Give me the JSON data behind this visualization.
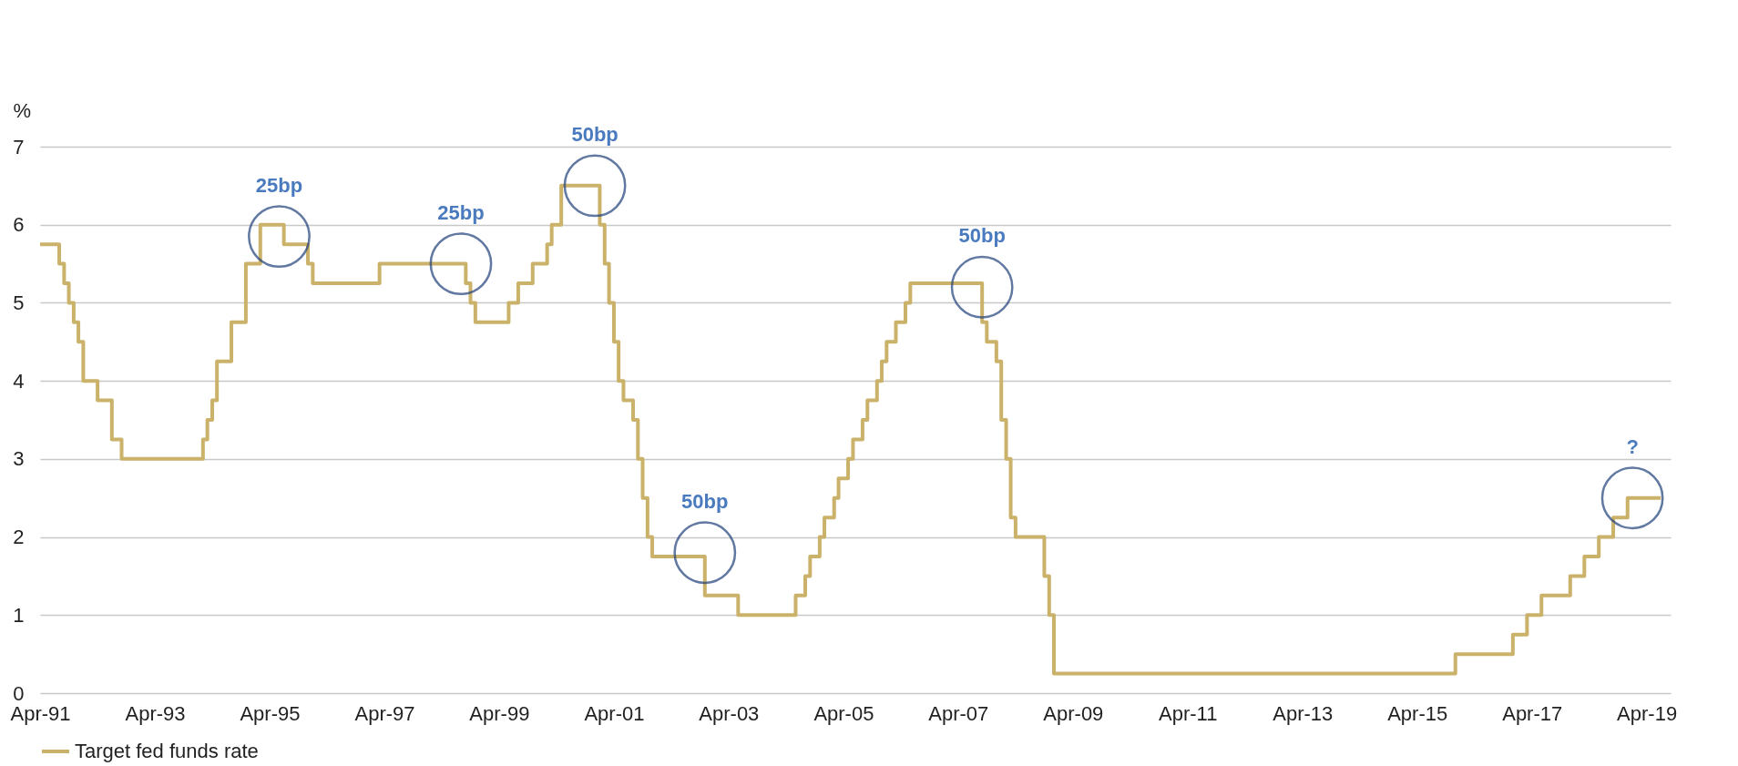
{
  "chart_data": {
    "type": "step",
    "ylabel": "%",
    "x": [
      "1991-04",
      "1991-08",
      "1991-09",
      "1991-10",
      "1991-11",
      "1991-12",
      "1992-01",
      "1992-04",
      "1992-07",
      "1992-09",
      "1994-02",
      "1994-03",
      "1994-04",
      "1994-05",
      "1994-08",
      "1994-11",
      "1995-02",
      "1995-07",
      "1995-12",
      "1996-01",
      "1997-03",
      "1998-09",
      "1998-10",
      "1998-11",
      "1999-06",
      "1999-08",
      "1999-11",
      "2000-02",
      "2000-03",
      "2000-05",
      "2001-01",
      "2001-02",
      "2001-03",
      "2001-04",
      "2001-05",
      "2001-06",
      "2001-08",
      "2001-09",
      "2001-10",
      "2001-11",
      "2001-12",
      "2002-11",
      "2003-06",
      "2004-06",
      "2004-08",
      "2004-09",
      "2004-11",
      "2004-12",
      "2005-02",
      "2005-03",
      "2005-05",
      "2005-06",
      "2005-08",
      "2005-09",
      "2005-11",
      "2005-12",
      "2006-01",
      "2006-03",
      "2006-05",
      "2006-06",
      "2007-09",
      "2007-10",
      "2007-12",
      "2008-01",
      "2008-02",
      "2008-03",
      "2008-04",
      "2008-10",
      "2008-11",
      "2008-12",
      "2015-12",
      "2016-12",
      "2017-03",
      "2017-06",
      "2017-12",
      "2018-03",
      "2018-06",
      "2018-09",
      "2018-12",
      "2019-07"
    ],
    "series": [
      {
        "name": "Target fed funds rate",
        "color": "#cbb26a",
        "values": [
          5.75,
          5.5,
          5.25,
          5,
          4.75,
          4.5,
          4,
          3.75,
          3.25,
          3,
          3.25,
          3.5,
          3.75,
          4.25,
          4.75,
          5.5,
          6,
          5.75,
          5.5,
          5.25,
          5.5,
          5.25,
          5,
          4.75,
          5,
          5.25,
          5.5,
          5.75,
          6,
          6.5,
          6,
          5.5,
          5,
          4.5,
          4,
          3.75,
          3.5,
          3,
          2.5,
          2,
          1.75,
          1.25,
          1,
          1.25,
          1.5,
          1.75,
          2,
          2.25,
          2.5,
          2.75,
          3,
          3.25,
          3.5,
          3.75,
          4,
          4.25,
          4.5,
          4.75,
          5,
          5.25,
          4.75,
          4.5,
          4.25,
          3.5,
          3,
          2.25,
          2,
          1.5,
          1,
          0.25,
          0.5,
          0.75,
          1,
          1.25,
          1.5,
          1.75,
          2,
          2.25,
          2.5,
          2.5
        ]
      }
    ],
    "xlim": [
      "1991-04",
      "2019-09"
    ],
    "xticks": [
      {
        "value": "1991-04",
        "label": "Apr-91"
      },
      {
        "value": "1993-04",
        "label": "Apr-93"
      },
      {
        "value": "1995-04",
        "label": "Apr-95"
      },
      {
        "value": "1997-04",
        "label": "Apr-97"
      },
      {
        "value": "1999-04",
        "label": "Apr-99"
      },
      {
        "value": "2001-04",
        "label": "Apr-01"
      },
      {
        "value": "2003-04",
        "label": "Apr-03"
      },
      {
        "value": "2005-04",
        "label": "Apr-05"
      },
      {
        "value": "2007-04",
        "label": "Apr-07"
      },
      {
        "value": "2009-04",
        "label": "Apr-09"
      },
      {
        "value": "2011-04",
        "label": "Apr-11"
      },
      {
        "value": "2013-04",
        "label": "Apr-13"
      },
      {
        "value": "2015-04",
        "label": "Apr-15"
      },
      {
        "value": "2017-04",
        "label": "Apr-17"
      },
      {
        "value": "2019-04",
        "label": "Apr-19"
      }
    ],
    "ylim": [
      0,
      7
    ],
    "yticks": [
      0,
      1,
      2,
      3,
      4,
      5,
      6,
      7
    ],
    "grid": "y",
    "legend": "bottom",
    "annotations": [
      {
        "text": "25bp",
        "x": "1995-06",
        "y": 5.85
      },
      {
        "text": "25bp",
        "x": "1998-08",
        "y": 5.5
      },
      {
        "text": "50bp",
        "x": "2000-12",
        "y": 6.5
      },
      {
        "text": "50bp",
        "x": "2002-11",
        "y": 1.8
      },
      {
        "text": "50bp",
        "x": "2007-09",
        "y": 5.2
      },
      {
        "text": "?",
        "x": "2019-01",
        "y": 2.5
      }
    ]
  }
}
